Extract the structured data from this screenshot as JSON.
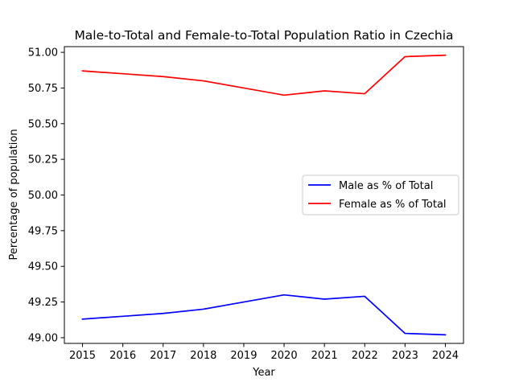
{
  "chart_data": {
    "type": "line",
    "title": "Male-to-Total and Female-to-Total Population Ratio in Czechia",
    "xlabel": "Year",
    "ylabel": "Percentage of population",
    "x": [
      2015,
      2016,
      2017,
      2018,
      2019,
      2020,
      2021,
      2022,
      2023,
      2024
    ],
    "x_tick_labels": [
      "2015",
      "2016",
      "2017",
      "2018",
      "2019",
      "2020",
      "2021",
      "2022",
      "2023",
      "2024"
    ],
    "y_ticks": [
      49.0,
      49.25,
      49.5,
      49.75,
      50.0,
      50.25,
      50.5,
      50.75,
      51.0
    ],
    "y_tick_labels": [
      "49.00",
      "49.25",
      "49.50",
      "49.75",
      "50.00",
      "50.25",
      "50.50",
      "50.75",
      "51.00"
    ],
    "xlim": [
      2014.55,
      2024.45
    ],
    "ylim": [
      48.96,
      51.04
    ],
    "grid": false,
    "legend_position": "center-right",
    "series": [
      {
        "name": "Male as % of Total",
        "color": "#0000ff",
        "values": [
          49.13,
          49.15,
          49.17,
          49.2,
          49.25,
          49.3,
          49.27,
          49.29,
          49.03,
          49.02
        ]
      },
      {
        "name": "Female as % of Total",
        "color": "#ff0000",
        "values": [
          50.87,
          50.85,
          50.83,
          50.8,
          50.75,
          50.7,
          50.73,
          50.71,
          50.97,
          50.98
        ]
      }
    ]
  }
}
